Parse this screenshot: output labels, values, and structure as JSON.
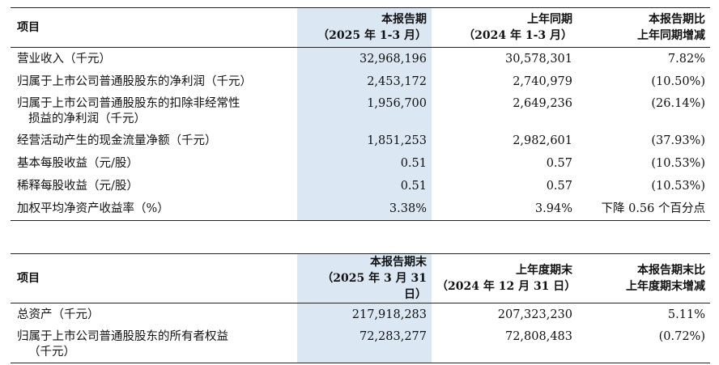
{
  "table1": {
    "header": {
      "item": "项目",
      "current": "本报告期",
      "current_period": "（2025 年 1-3 月）",
      "prior": "上年同期",
      "prior_period": "（2024 年 1-3 月）",
      "change_line1": "本报告期比",
      "change_line2": "上年同期增减"
    },
    "rows": [
      {
        "label": "营业收入（千元）",
        "label2": "",
        "current": "32,968,196",
        "prior": "30,578,301",
        "change": "7.82%"
      },
      {
        "label": "归属于上市公司普通股股东的净利润（千元）",
        "label2": "",
        "current": "2,453,172",
        "prior": "2,740,979",
        "change": "(10.50%)"
      },
      {
        "label": "归属于上市公司普通股股东的扣除非经常性",
        "label2": "损益的净利润（千元）",
        "current": "1,956,700",
        "prior": "2,649,236",
        "change": "(26.14%)"
      },
      {
        "label": "经营活动产生的现金流量净额（千元）",
        "label2": "",
        "current": "1,851,253",
        "prior": "2,982,601",
        "change": "(37.93%)"
      },
      {
        "label": "基本每股收益（元/股）",
        "label2": "",
        "current": "0.51",
        "prior": "0.57",
        "change": "(10.53%)"
      },
      {
        "label": "稀释每股收益（元/股）",
        "label2": "",
        "current": "0.51",
        "prior": "0.57",
        "change": "(10.53%)"
      },
      {
        "label": "加权平均净资产收益率（%）",
        "label2": "",
        "current": "3.38%",
        "prior": "3.94%",
        "change": "下降 0.56 个百分点"
      }
    ]
  },
  "table2": {
    "header": {
      "item": "项目",
      "current": "本报告期末",
      "current_period": "（2025 年 3 月 31 日）",
      "prior": "上年度期末",
      "prior_period": "（2024 年 12 月 31 日）",
      "change_line1": "本报告期末比",
      "change_line2": "上年度期末增减"
    },
    "rows": [
      {
        "label": "总资产（千元）",
        "label2": "",
        "current": "217,918,283",
        "prior": "207,323,230",
        "change": "5.11%"
      },
      {
        "label": "归属于上市公司普通股股东的所有者权益",
        "label2": "（千元）",
        "current": "72,283,277",
        "prior": "72,808,483",
        "change": "(0.72%)"
      }
    ]
  },
  "colors": {
    "highlight": "#dbe8f4",
    "rule": "#222222"
  }
}
